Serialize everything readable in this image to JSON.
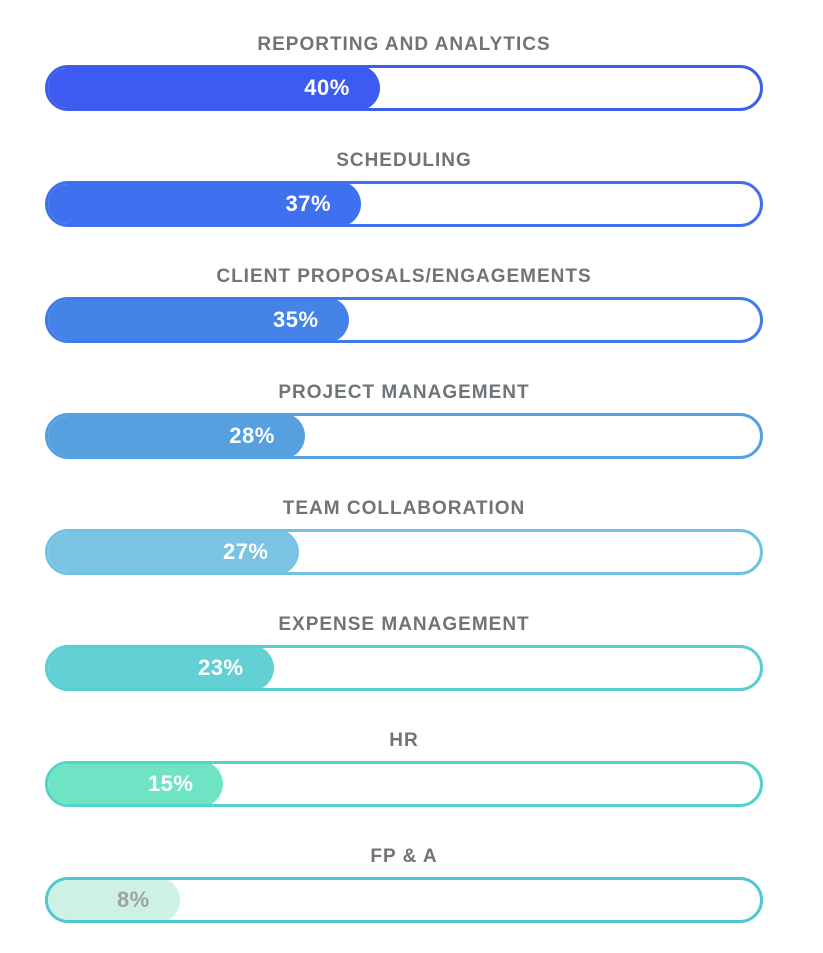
{
  "chart_data": {
    "type": "bar",
    "orientation": "horizontal",
    "title": "",
    "xlabel": "",
    "ylabel": "",
    "xlim": [
      0,
      100
    ],
    "grid": false,
    "legend": false,
    "categories": [
      "REPORTING AND ANALYTICS",
      "SCHEDULING",
      "CLIENT PROPOSALS/ENGAGEMENTS",
      "PROJECT MANAGEMENT",
      "TEAM COLLABORATION",
      "EXPENSE MANAGEMENT",
      "HR",
      "FP & A"
    ],
    "values": [
      40,
      37,
      35,
      28,
      27,
      23,
      15,
      8
    ],
    "value_labels": [
      "40%",
      "37%",
      "35%",
      "28%",
      "27%",
      "23%",
      "15%",
      "8%"
    ],
    "bar_colors": [
      "#3d5af1",
      "#3f70ef",
      "#4583e9",
      "#56a0df",
      "#7ac3e2",
      "#62d0d4",
      "#6fe4c4",
      "#cdf2e5"
    ],
    "bar_border_colors": [
      "#3c5eeb",
      "#3f70ef",
      "#3f7be9",
      "#56a0df",
      "#70c2e2",
      "#5aced4",
      "#52d2cc",
      "#4fc7cf"
    ],
    "value_text_colors": [
      "#ffffff",
      "#ffffff",
      "#ffffff",
      "#ffffff",
      "#ffffff",
      "#ffffff",
      "#ffffff",
      "#9ca3a3"
    ],
    "label_color": "#6e7478",
    "background_color": "#ffffff"
  },
  "bars": [
    {
      "label": "REPORTING AND ANALYTICS",
      "value": 40,
      "value_label": "40%",
      "fill_color": "#3d5af1",
      "border_color": "#3c5eeb",
      "value_text_color": "#ffffff"
    },
    {
      "label": "SCHEDULING",
      "value": 37,
      "value_label": "37%",
      "fill_color": "#3f70ef",
      "border_color": "#3f70ef",
      "value_text_color": "#ffffff"
    },
    {
      "label": "CLIENT PROPOSALS/ENGAGEMENTS",
      "value": 35,
      "value_label": "35%",
      "fill_color": "#4583e9",
      "border_color": "#3f7be9",
      "value_text_color": "#ffffff"
    },
    {
      "label": "PROJECT MANAGEMENT",
      "value": 28,
      "value_label": "28%",
      "fill_color": "#56a0df",
      "border_color": "#56a0df",
      "value_text_color": "#ffffff"
    },
    {
      "label": "TEAM COLLABORATION",
      "value": 27,
      "value_label": "27%",
      "fill_color": "#7ac3e2",
      "border_color": "#70c2e2",
      "value_text_color": "#ffffff"
    },
    {
      "label": "EXPENSE MANAGEMENT",
      "value": 23,
      "value_label": "23%",
      "fill_color": "#62d0d4",
      "border_color": "#5aced4",
      "value_text_color": "#ffffff"
    },
    {
      "label": "HR",
      "value": 15,
      "value_label": "15%",
      "fill_color": "#6fe4c4",
      "border_color": "#52d2cc",
      "value_text_color": "#ffffff"
    },
    {
      "label": "FP & A",
      "value": 8,
      "value_label": "8%",
      "fill_color": "#cdf2e5",
      "border_color": "#4fc7cf",
      "value_text_color": "#9ca3a3"
    }
  ]
}
